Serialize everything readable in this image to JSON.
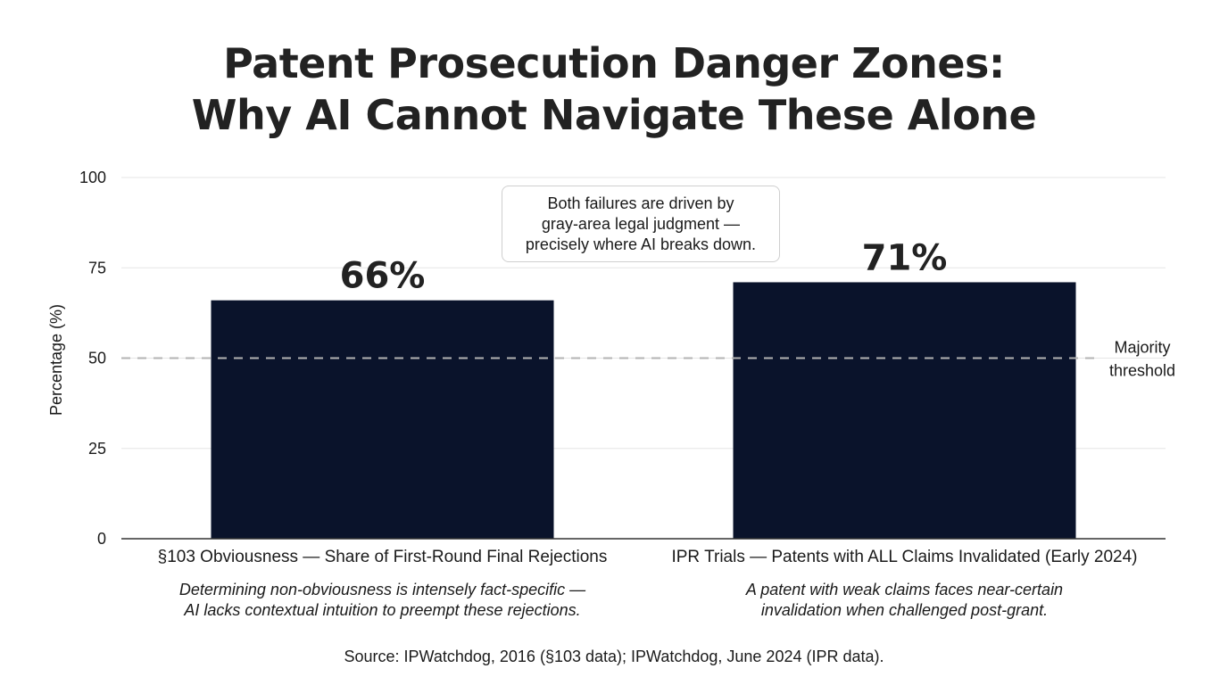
{
  "chart_data": {
    "type": "bar",
    "title_lines": [
      "Patent Prosecution Danger Zones:",
      "Why AI Cannot Navigate These Alone"
    ],
    "categories": [
      "§103 Obviousness — Share of First-Round Final Rejections",
      "IPR Trials — Patents with ALL Claims Invalidated (Early 2024)"
    ],
    "category_notes": [
      [
        "Determining non-obviousness is intensely fact-specific —",
        "AI lacks contextual intuition to preempt these rejections."
      ],
      [
        "A patent with weak claims faces near-certain",
        "invalidation when challenged post-grant."
      ]
    ],
    "values": [
      66,
      71
    ],
    "data_labels": [
      "66%",
      "71%"
    ],
    "ylabel": "Percentage (%)",
    "ylim": [
      0,
      100
    ],
    "yticks": [
      0,
      25,
      50,
      75,
      100
    ],
    "grid": true,
    "reference_line": {
      "value": 50,
      "label_lines": [
        "Majority",
        "threshold"
      ]
    },
    "annotation_lines": [
      "Both failures are driven by",
      "gray-area legal judgment —",
      "precisely where AI breaks down."
    ],
    "source": "Source: IPWatchdog, 2016 (§103 data); IPWatchdog, June 2024 (IPR data).",
    "colors": {
      "bar": "#0a132b",
      "grid": "#e6e6e6",
      "reference": "#b3b3b3",
      "axis": "#333333"
    }
  }
}
